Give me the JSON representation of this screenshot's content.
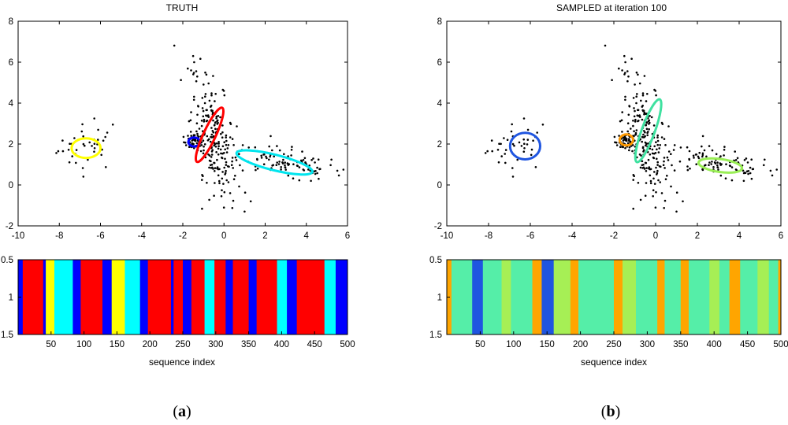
{
  "chart_data": [
    {
      "type": "scatter",
      "title": "TRUTH",
      "panel_label": "a",
      "xlim": [
        -10,
        6
      ],
      "ylim": [
        -2,
        8
      ],
      "xticks": [
        -10,
        -8,
        -6,
        -4,
        -2,
        0,
        2,
        4,
        6
      ],
      "yticks": [
        -2,
        0,
        2,
        4,
        6,
        8
      ],
      "ellipses": [
        {
          "name": "yellow",
          "color": "#ffff00",
          "cx": -6.7,
          "cy": 1.8,
          "rx": 0.7,
          "ry": 0.48,
          "angle": 0
        },
        {
          "name": "blue",
          "color": "#0000ff",
          "cx": -1.45,
          "cy": 2.1,
          "rx": 0.28,
          "ry": 0.22,
          "angle": 0
        },
        {
          "name": "red",
          "color": "#ff0000",
          "cx": -0.7,
          "cy": 2.45,
          "rx": 1.45,
          "ry": 0.3,
          "angle": -65
        },
        {
          "name": "cyan",
          "color": "#00e5ee",
          "cx": 2.45,
          "cy": 1.1,
          "rx": 1.9,
          "ry": 0.38,
          "angle": 14
        }
      ],
      "sequence": {
        "xlabel": "sequence index",
        "xlim": [
          0,
          500
        ],
        "ylim": [
          0.5,
          1.5
        ],
        "xticks": [
          50,
          100,
          150,
          200,
          250,
          300,
          350,
          400,
          450,
          500
        ],
        "yticks": [
          0.5,
          1,
          1.5
        ],
        "segments": [
          {
            "start": 0,
            "end": 7,
            "color": "#0000ff"
          },
          {
            "start": 7,
            "end": 38,
            "color": "#ff0000"
          },
          {
            "start": 38,
            "end": 42,
            "color": "#0000ff"
          },
          {
            "start": 42,
            "end": 55,
            "color": "#ffff00"
          },
          {
            "start": 55,
            "end": 83,
            "color": "#00ffff"
          },
          {
            "start": 83,
            "end": 95,
            "color": "#0000ff"
          },
          {
            "start": 95,
            "end": 128,
            "color": "#ff0000"
          },
          {
            "start": 128,
            "end": 142,
            "color": "#0000ff"
          },
          {
            "start": 142,
            "end": 162,
            "color": "#ffff00"
          },
          {
            "start": 162,
            "end": 185,
            "color": "#00ffff"
          },
          {
            "start": 185,
            "end": 197,
            "color": "#0000ff"
          },
          {
            "start": 197,
            "end": 232,
            "color": "#ff0000"
          },
          {
            "start": 232,
            "end": 236,
            "color": "#0000ff"
          },
          {
            "start": 236,
            "end": 250,
            "color": "#ff0000"
          },
          {
            "start": 250,
            "end": 263,
            "color": "#0000ff"
          },
          {
            "start": 263,
            "end": 283,
            "color": "#ff0000"
          },
          {
            "start": 283,
            "end": 298,
            "color": "#00ffff"
          },
          {
            "start": 298,
            "end": 315,
            "color": "#ff0000"
          },
          {
            "start": 315,
            "end": 326,
            "color": "#0000ff"
          },
          {
            "start": 326,
            "end": 350,
            "color": "#ff0000"
          },
          {
            "start": 350,
            "end": 362,
            "color": "#0000ff"
          },
          {
            "start": 362,
            "end": 393,
            "color": "#ff0000"
          },
          {
            "start": 393,
            "end": 408,
            "color": "#00ffff"
          },
          {
            "start": 408,
            "end": 423,
            "color": "#0000ff"
          },
          {
            "start": 423,
            "end": 465,
            "color": "#ff0000"
          },
          {
            "start": 465,
            "end": 482,
            "color": "#00ffff"
          },
          {
            "start": 482,
            "end": 500,
            "color": "#0000ff"
          }
        ]
      }
    },
    {
      "type": "scatter",
      "title": "SAMPLED at iteration 100",
      "panel_label": "b",
      "xlim": [
        -10,
        6
      ],
      "ylim": [
        -2,
        8
      ],
      "xticks": [
        -10,
        -8,
        -6,
        -4,
        -2,
        0,
        2,
        4,
        6
      ],
      "yticks": [
        -2,
        0,
        2,
        4,
        6,
        8
      ],
      "ellipses": [
        {
          "name": "blue",
          "color": "#1f55e0",
          "cx": -6.25,
          "cy": 1.9,
          "rx": 0.72,
          "ry": 0.65,
          "angle": 0
        },
        {
          "name": "orange",
          "color": "#ff9900",
          "cx": -1.4,
          "cy": 2.2,
          "rx": 0.32,
          "ry": 0.27,
          "angle": 0
        },
        {
          "name": "green",
          "color": "#3fe1a0",
          "cx": -0.35,
          "cy": 2.65,
          "rx": 1.6,
          "ry": 0.32,
          "angle": -70
        },
        {
          "name": "lime",
          "color": "#99ee55",
          "cx": 3.1,
          "cy": 0.95,
          "rx": 1.05,
          "ry": 0.32,
          "angle": 8
        }
      ],
      "sequence": {
        "xlabel": "sequence index",
        "xlim": [
          0,
          500
        ],
        "ylim": [
          0.5,
          1.5
        ],
        "xticks": [
          50,
          100,
          150,
          200,
          250,
          300,
          350,
          400,
          450,
          500
        ],
        "yticks": [
          0.5,
          1,
          1.5
        ],
        "segments": [
          {
            "start": 0,
            "end": 7,
            "color": "#ffa500"
          },
          {
            "start": 7,
            "end": 38,
            "color": "#55eea8"
          },
          {
            "start": 38,
            "end": 54,
            "color": "#1f55e0"
          },
          {
            "start": 54,
            "end": 82,
            "color": "#55eea8"
          },
          {
            "start": 82,
            "end": 96,
            "color": "#a6ef55"
          },
          {
            "start": 96,
            "end": 128,
            "color": "#55eea8"
          },
          {
            "start": 128,
            "end": 142,
            "color": "#ffa500"
          },
          {
            "start": 142,
            "end": 160,
            "color": "#1f55e0"
          },
          {
            "start": 160,
            "end": 185,
            "color": "#a6ef55"
          },
          {
            "start": 185,
            "end": 197,
            "color": "#ffa500"
          },
          {
            "start": 197,
            "end": 250,
            "color": "#55eea8"
          },
          {
            "start": 250,
            "end": 263,
            "color": "#ffa500"
          },
          {
            "start": 263,
            "end": 283,
            "color": "#a6ef55"
          },
          {
            "start": 283,
            "end": 315,
            "color": "#55eea8"
          },
          {
            "start": 315,
            "end": 326,
            "color": "#ffa500"
          },
          {
            "start": 326,
            "end": 350,
            "color": "#55eea8"
          },
          {
            "start": 350,
            "end": 362,
            "color": "#ffa500"
          },
          {
            "start": 362,
            "end": 393,
            "color": "#55eea8"
          },
          {
            "start": 393,
            "end": 408,
            "color": "#a6ef55"
          },
          {
            "start": 408,
            "end": 423,
            "color": "#55eea8"
          },
          {
            "start": 423,
            "end": 439,
            "color": "#ffa500"
          },
          {
            "start": 439,
            "end": 465,
            "color": "#55eea8"
          },
          {
            "start": 465,
            "end": 482,
            "color": "#a6ef55"
          },
          {
            "start": 482,
            "end": 500,
            "color": "#55eea8"
          },
          {
            "start": 496,
            "end": 500,
            "color": "#ffa500"
          }
        ]
      }
    }
  ],
  "shared_points": {
    "clusters": [
      {
        "name": "left",
        "cx": -6.6,
        "cy": 1.85,
        "sx": 0.75,
        "sy": 0.55,
        "rho": 0.0,
        "n": 36
      },
      {
        "name": "small",
        "cx": -1.45,
        "cy": 2.1,
        "sx": 0.25,
        "sy": 0.2,
        "rho": 0.0,
        "n": 55
      },
      {
        "name": "vertical",
        "cx": -0.5,
        "cy": 2.35,
        "sx": 0.55,
        "sy": 1.55,
        "rho": -0.55,
        "n": 210
      },
      {
        "name": "diagonal",
        "cx": 2.9,
        "cy": 1.05,
        "sx": 1.45,
        "sy": 0.45,
        "rho": -0.55,
        "n": 110
      }
    ],
    "outliers": [
      [
        -1.5,
        6.3
      ],
      [
        -1.45,
        6.0
      ],
      [
        -1.3,
        5.3
      ],
      [
        -1.6,
        5.6
      ],
      [
        1.0,
        -1.3
      ],
      [
        1.3,
        -0.8
      ],
      [
        0.3,
        -0.4
      ],
      [
        5.8,
        0.75
      ],
      [
        4.6,
        0.3
      ],
      [
        -8.05,
        1.65
      ],
      [
        -6.3,
        3.25
      ],
      [
        -5.4,
        2.95
      ]
    ]
  },
  "figure_labels": {
    "a": "a",
    "b": "b"
  }
}
